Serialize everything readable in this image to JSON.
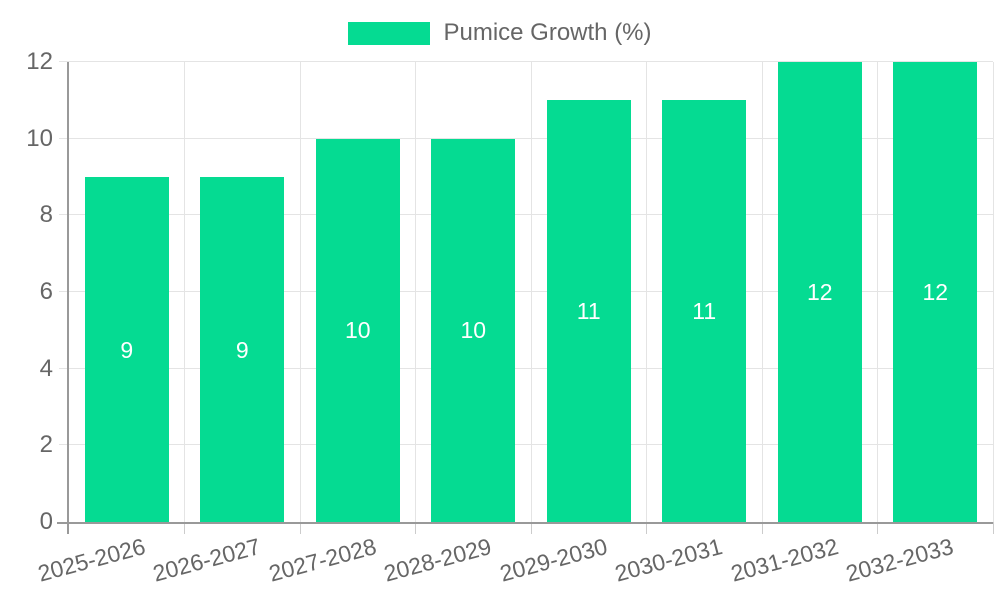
{
  "chart_data": {
    "type": "bar",
    "title": "",
    "legend_position": "top-center",
    "grid": true,
    "categories": [
      "2025-2026",
      "2026-2027",
      "2027-2028",
      "2028-2029",
      "2029-2030",
      "2030-2031",
      "2031-2032",
      "2032-2033"
    ],
    "series": [
      {
        "name": "Pumice Growth (%)",
        "values": [
          9,
          9,
          10,
          10,
          11,
          11,
          12,
          12
        ]
      }
    ],
    "bar_value_labels": [
      "9",
      "9",
      "10",
      "10",
      "11",
      "11",
      "12",
      "12"
    ],
    "xlabel": "",
    "ylabel": "",
    "ylim": [
      0,
      12
    ],
    "yticks": [
      0,
      2,
      4,
      6,
      8,
      10,
      12
    ],
    "x_tick_label_rotation_deg": -15
  },
  "colors": {
    "bar": "#05db92",
    "axis": "#999999",
    "grid": "#e4e4e4",
    "tick": "#cccccc",
    "text": "#666666",
    "value_label": "#ffffff"
  }
}
